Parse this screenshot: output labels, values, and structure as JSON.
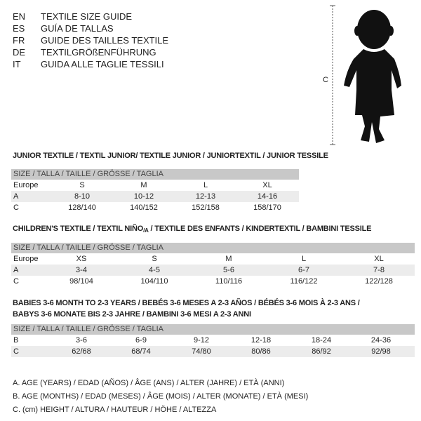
{
  "titles": [
    {
      "code": "EN",
      "text": "TEXTILE SIZE GUIDE"
    },
    {
      "code": "ES",
      "text": "GUÍA DE TALLAS"
    },
    {
      "code": "FR",
      "text": "GUIDE DES TAILLES TEXTILE"
    },
    {
      "code": "DE",
      "text": "TEXTILGRÖßENFÜHRUNG"
    },
    {
      "code": "IT",
      "text": "GUIDA ALLE TAGLIE TESSILI"
    }
  ],
  "figure": {
    "measure_label": "C",
    "icon": "child-silhouette-icon"
  },
  "size_header": "SIZE / TALLA / TAILLE / GRÖSSE / TAGLIA",
  "junior": {
    "title": "JUNIOR TEXTILE / TEXTIL JUNIOR/ TEXTILE JUNIOR / JUNIORTEXTIL / JUNIOR TESSILE",
    "rows": [
      {
        "label": "Europe",
        "values": [
          "S",
          "M",
          "L",
          "XL"
        ]
      },
      {
        "label": "A",
        "values": [
          "8-10",
          "10-12",
          "12-13",
          "14-16"
        ]
      },
      {
        "label": "C",
        "values": [
          "128/140",
          "140/152",
          "152/158",
          "158/170"
        ]
      }
    ]
  },
  "children": {
    "title": "CHILDREN'S TEXTILE / TEXTIL NIÑO/A / TEXTILE DES ENFANTS / KINDERTEXTIL / BAMBINI TESSILE",
    "rows": [
      {
        "label": "Europe",
        "values": [
          "XS",
          "S",
          "M",
          "L",
          "XL"
        ]
      },
      {
        "label": "A",
        "values": [
          "3-4",
          "4-5",
          "5-6",
          "6-7",
          "7-8"
        ]
      },
      {
        "label": "C",
        "values": [
          "98/104",
          "104/110",
          "110/116",
          "116/122",
          "122/128"
        ]
      }
    ]
  },
  "babies": {
    "title_line1": "BABIES 3-6 MONTH TO 2-3 YEARS / BEBÉS 3-6 MESES A 2-3 AÑOS / BÉBÉS 3-6 MOIS À 2-3 ANS /",
    "title_line2": "BABYS 3-6 MONATE BIS 2-3 JAHRE / BAMBINI 3-6 MESI A 2-3 ANNI",
    "rows": [
      {
        "label": "B",
        "values": [
          "3-6",
          "6-9",
          "9-12",
          "12-18",
          "18-24",
          "24-36"
        ]
      },
      {
        "label": "C",
        "values": [
          "62/68",
          "68/74",
          "74/80",
          "80/86",
          "86/92",
          "92/98"
        ]
      }
    ]
  },
  "legend": [
    "A. AGE (YEARS) / EDAD (AÑOS) / ÂGE (ANS) / ALTER (JAHRE) / ETÀ (ANNI)",
    "B. AGE (MONTHS) / EDAD (MESES) / ÂGE (MOIS) / ALTER (MONATE) / ETÀ (MESI)",
    "C. (cm) HEIGHT / ALTURA / HAUTEUR / HÖHE / ALTEZZA"
  ]
}
